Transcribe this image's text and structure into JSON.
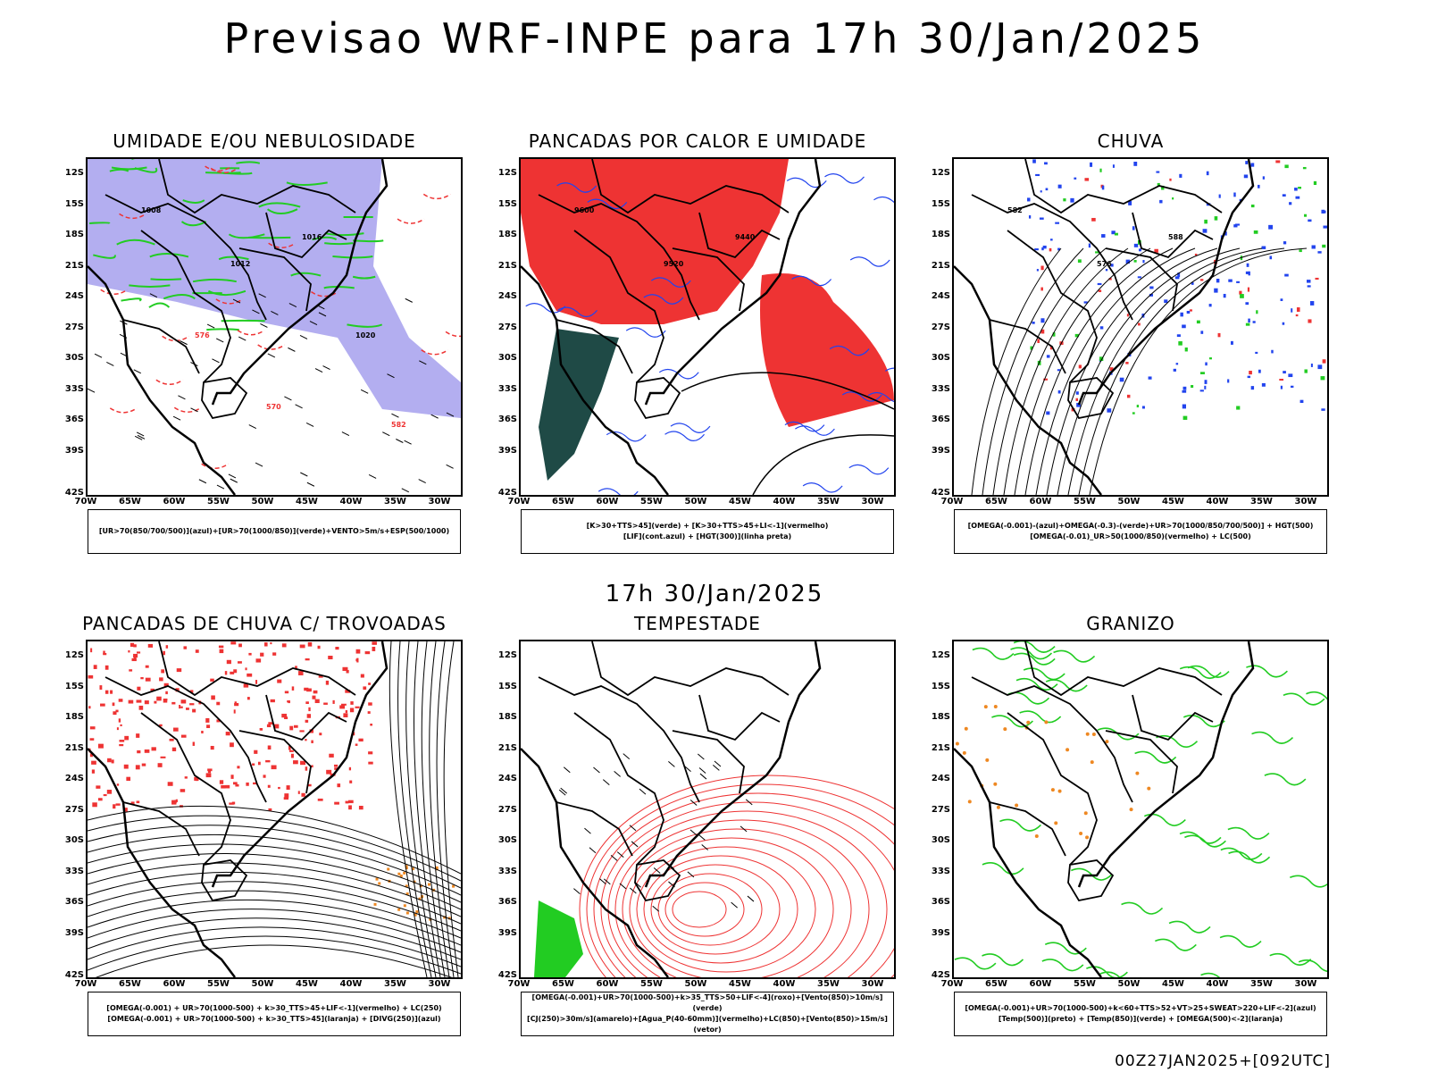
{
  "main_title": "Previsao WRF-INPE  para 17h 30/Jan/2025",
  "mid_title": "17h 30/Jan/2025",
  "footer": "00Z27JAN2025+[092UTC]",
  "axes": {
    "lat_labels": [
      "12S",
      "15S",
      "18S",
      "21S",
      "24S",
      "27S",
      "30S",
      "33S",
      "36S",
      "39S",
      "42S"
    ],
    "lon_labels": [
      "70W",
      "65W",
      "60W",
      "55W",
      "50W",
      "45W",
      "40W",
      "35W",
      "30W"
    ]
  },
  "colors": {
    "blue_fill": "#b3aef0",
    "green": "#22cc22",
    "red": "#ee3333",
    "dark_teal": "#1f4a46",
    "blue": "#2244ee",
    "orange": "#ee8822"
  },
  "panels": [
    {
      "title": "UMIDADE E/OU NEBULOSIDADE",
      "legend": [
        "[UR>70(850/700/500)](azul)+[UR>70(1000/850)](verde)+VENTO>5m/s+ESP(500/1000)"
      ],
      "labels": [
        "1008",
        "1012",
        "1016",
        "1020",
        "570",
        "576",
        "582"
      ]
    },
    {
      "title": "PANCADAS POR CALOR E UMIDADE",
      "legend": [
        "[K>30+TTS>45](verde)  +  [K>30+TTS>45+LI<-1](vermelho)",
        "[LIF](cont.azul)  +  [HGT(300)](linha preta)"
      ],
      "labels": [
        "9600",
        "9520",
        "9440"
      ]
    },
    {
      "title": "CHUVA",
      "legend": [
        "[OMEGA(-0.001)-(azul)+OMEGA(-0.3)-(verde)+UR>70(1000/850/700/500)]  +  HGT(500)",
        "[OMEGA(-0.01)_UR>50(1000/850)(vermelho)  +  LC(500)"
      ],
      "labels": [
        "582",
        "576",
        "588"
      ]
    },
    {
      "title": "PANCADAS DE CHUVA C/ TROVOADAS",
      "legend": [
        "[OMEGA(-0.001)  +  UR>70(1000-500)  +  k>30_TTS>45+LIF<-1](vermelho)  +  LC(250)",
        "[OMEGA(-0.001)  +  UR>70(1000-500)  +  k>30_TTS>45](laranja)  +  [DIVG(250)](azul)"
      ],
      "labels": []
    },
    {
      "title": "TEMPESTADE",
      "legend": [
        "[OMEGA(-0.001)+UR>70(1000-500)+k>35_TTS>50+LIF<-4](roxo)+[Vento(850)>10m/s](verde)",
        "[CJ(250)>30m/s](amarelo)+[Agua_P(40-60mm)](vermelho)+LC(850)+[Vento(850)>15m/s](vetor)"
      ],
      "labels": []
    },
    {
      "title": "GRANIZO",
      "legend": [
        "[OMEGA(-0.001)+UR>70(1000-500)+k<60+TTS>52+VT>25+SWEAT>220+LIF<-2](azul)",
        "[Temp(500)](preto)  +  [Temp(850)](verde)  +  [OMEGA(500)<-2](laranja)"
      ],
      "labels": []
    }
  ]
}
